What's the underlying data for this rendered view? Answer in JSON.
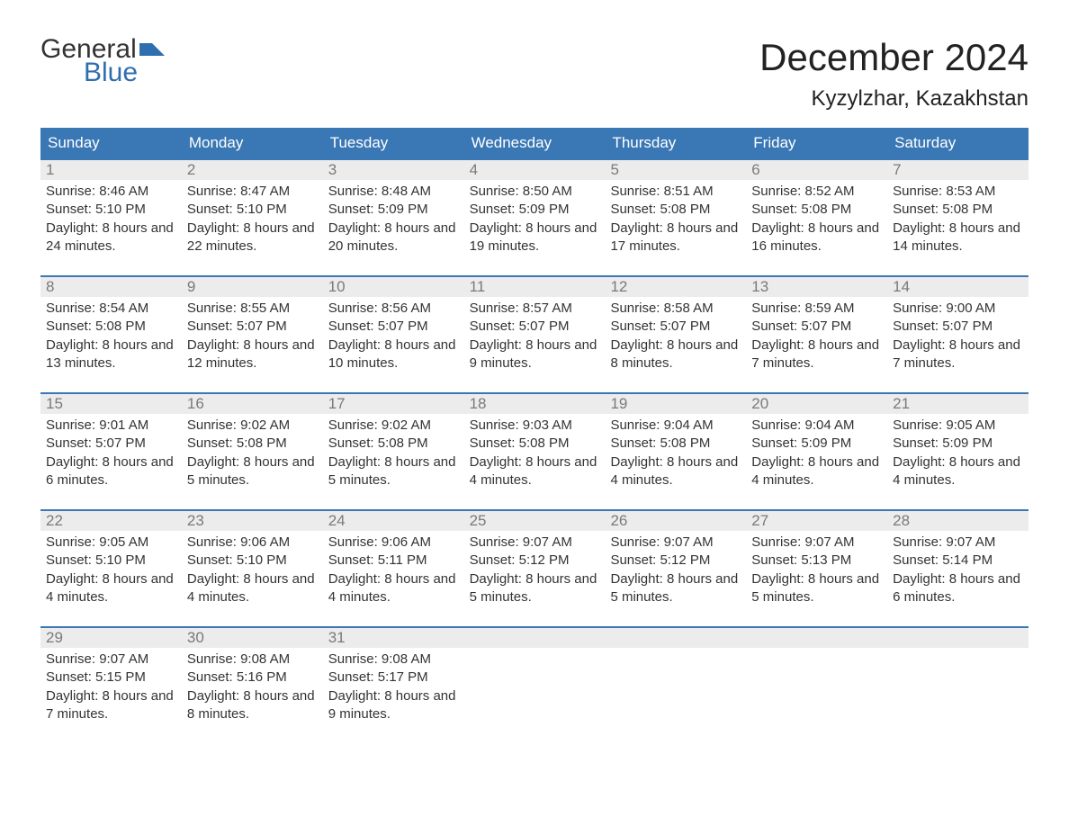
{
  "logo": {
    "top": "General",
    "bottom": "Blue",
    "flag_color": "#2f6fb0"
  },
  "header": {
    "month_title": "December 2024",
    "location": "Kyzylzhar, Kazakhstan"
  },
  "colors": {
    "header_bg": "#3a77b5",
    "header_text": "#ffffff",
    "daynum_bg": "#ececec",
    "daynum_text": "#7a7a7a",
    "border": "#3a77b5",
    "body_text": "#333333",
    "logo_blue": "#2f6fb0"
  },
  "weekdays": [
    "Sunday",
    "Monday",
    "Tuesday",
    "Wednesday",
    "Thursday",
    "Friday",
    "Saturday"
  ],
  "weeks": [
    [
      {
        "n": "1",
        "sunrise": "8:46 AM",
        "sunset": "5:10 PM",
        "daylight": "8 hours and 24 minutes."
      },
      {
        "n": "2",
        "sunrise": "8:47 AM",
        "sunset": "5:10 PM",
        "daylight": "8 hours and 22 minutes."
      },
      {
        "n": "3",
        "sunrise": "8:48 AM",
        "sunset": "5:09 PM",
        "daylight": "8 hours and 20 minutes."
      },
      {
        "n": "4",
        "sunrise": "8:50 AM",
        "sunset": "5:09 PM",
        "daylight": "8 hours and 19 minutes."
      },
      {
        "n": "5",
        "sunrise": "8:51 AM",
        "sunset": "5:08 PM",
        "daylight": "8 hours and 17 minutes."
      },
      {
        "n": "6",
        "sunrise": "8:52 AM",
        "sunset": "5:08 PM",
        "daylight": "8 hours and 16 minutes."
      },
      {
        "n": "7",
        "sunrise": "8:53 AM",
        "sunset": "5:08 PM",
        "daylight": "8 hours and 14 minutes."
      }
    ],
    [
      {
        "n": "8",
        "sunrise": "8:54 AM",
        "sunset": "5:08 PM",
        "daylight": "8 hours and 13 minutes."
      },
      {
        "n": "9",
        "sunrise": "8:55 AM",
        "sunset": "5:07 PM",
        "daylight": "8 hours and 12 minutes."
      },
      {
        "n": "10",
        "sunrise": "8:56 AM",
        "sunset": "5:07 PM",
        "daylight": "8 hours and 10 minutes."
      },
      {
        "n": "11",
        "sunrise": "8:57 AM",
        "sunset": "5:07 PM",
        "daylight": "8 hours and 9 minutes."
      },
      {
        "n": "12",
        "sunrise": "8:58 AM",
        "sunset": "5:07 PM",
        "daylight": "8 hours and 8 minutes."
      },
      {
        "n": "13",
        "sunrise": "8:59 AM",
        "sunset": "5:07 PM",
        "daylight": "8 hours and 7 minutes."
      },
      {
        "n": "14",
        "sunrise": "9:00 AM",
        "sunset": "5:07 PM",
        "daylight": "8 hours and 7 minutes."
      }
    ],
    [
      {
        "n": "15",
        "sunrise": "9:01 AM",
        "sunset": "5:07 PM",
        "daylight": "8 hours and 6 minutes."
      },
      {
        "n": "16",
        "sunrise": "9:02 AM",
        "sunset": "5:08 PM",
        "daylight": "8 hours and 5 minutes."
      },
      {
        "n": "17",
        "sunrise": "9:02 AM",
        "sunset": "5:08 PM",
        "daylight": "8 hours and 5 minutes."
      },
      {
        "n": "18",
        "sunrise": "9:03 AM",
        "sunset": "5:08 PM",
        "daylight": "8 hours and 4 minutes."
      },
      {
        "n": "19",
        "sunrise": "9:04 AM",
        "sunset": "5:08 PM",
        "daylight": "8 hours and 4 minutes."
      },
      {
        "n": "20",
        "sunrise": "9:04 AM",
        "sunset": "5:09 PM",
        "daylight": "8 hours and 4 minutes."
      },
      {
        "n": "21",
        "sunrise": "9:05 AM",
        "sunset": "5:09 PM",
        "daylight": "8 hours and 4 minutes."
      }
    ],
    [
      {
        "n": "22",
        "sunrise": "9:05 AM",
        "sunset": "5:10 PM",
        "daylight": "8 hours and 4 minutes."
      },
      {
        "n": "23",
        "sunrise": "9:06 AM",
        "sunset": "5:10 PM",
        "daylight": "8 hours and 4 minutes."
      },
      {
        "n": "24",
        "sunrise": "9:06 AM",
        "sunset": "5:11 PM",
        "daylight": "8 hours and 4 minutes."
      },
      {
        "n": "25",
        "sunrise": "9:07 AM",
        "sunset": "5:12 PM",
        "daylight": "8 hours and 5 minutes."
      },
      {
        "n": "26",
        "sunrise": "9:07 AM",
        "sunset": "5:12 PM",
        "daylight": "8 hours and 5 minutes."
      },
      {
        "n": "27",
        "sunrise": "9:07 AM",
        "sunset": "5:13 PM",
        "daylight": "8 hours and 5 minutes."
      },
      {
        "n": "28",
        "sunrise": "9:07 AM",
        "sunset": "5:14 PM",
        "daylight": "8 hours and 6 minutes."
      }
    ],
    [
      {
        "n": "29",
        "sunrise": "9:07 AM",
        "sunset": "5:15 PM",
        "daylight": "8 hours and 7 minutes."
      },
      {
        "n": "30",
        "sunrise": "9:08 AM",
        "sunset": "5:16 PM",
        "daylight": "8 hours and 8 minutes."
      },
      {
        "n": "31",
        "sunrise": "9:08 AM",
        "sunset": "5:17 PM",
        "daylight": "8 hours and 9 minutes."
      },
      {
        "empty": true
      },
      {
        "empty": true
      },
      {
        "empty": true
      },
      {
        "empty": true
      }
    ]
  ],
  "labels": {
    "sunrise": "Sunrise: ",
    "sunset": "Sunset: ",
    "daylight": "Daylight: "
  }
}
